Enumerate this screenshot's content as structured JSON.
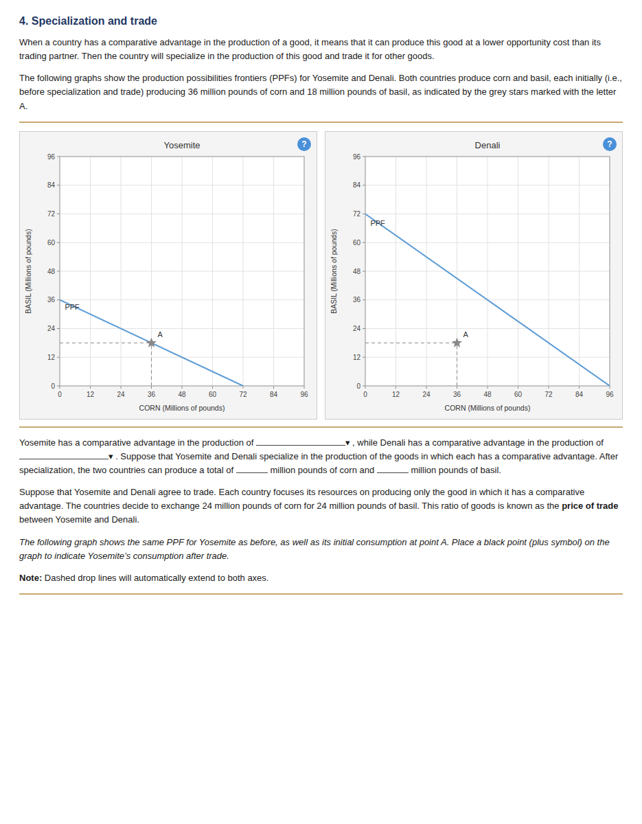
{
  "page": {
    "title": "4. Specialization and trade",
    "help": "?",
    "intro": [
      {
        "runs": [
          "When a country has a comparative advantage in the production of a good, it means that it can produce this good at a lower opportunity cost than its trading partner. Then the country will specialize in the production of this good and trade it for other goods."
        ]
      },
      {
        "runs": [
          "The following graphs show the production possibilities frontiers (PPFs) for Yosemite and Denali. Both countries produce corn and basil, each initially (i.e., before specialization and trade) producing 36 million pounds of corn and 18 million pounds of basil, as indicated by the grey stars marked with the letter A."
        ]
      }
    ],
    "questions": [
      {
        "runs": [
          "Yosemite has a comparative advantage in the production of ",
          {
            "type": "blank"
          },
          "▾ , while Denali has a comparative advantage in the production of ",
          {
            "type": "blank"
          },
          "▾ . Suppose that Yosemite and Denali specialize in the production of the goods in which each has a comparative advantage. After specialization, the two countries can produce a total of ",
          {
            "type": "blank"
          },
          " million pounds of corn and ",
          {
            "type": "blank"
          },
          " million pounds of basil."
        ]
      },
      {
        "runs": [
          "Suppose that Yosemite and Denali agree to trade. Each country focuses its resources on producing only the good in which it has a comparative advantage. The countries decide to exchange 24 million pounds of corn for 24 million pounds of basil. This ratio of goods is known as the ",
          {
            "text": "price of trade",
            "style": "bold"
          },
          " between Yosemite and Denali."
        ]
      },
      {
        "style": "italic",
        "runs": [
          "The following graph shows the same PPF for Yosemite as before, as well as its initial consumption at point A. Place a black point (plus symbol) on the graph to indicate Yosemite’s consumption after trade."
        ]
      },
      {
        "runs": [
          {
            "text": "Note:",
            "style": "bold"
          },
          " Dashed drop lines will automatically extend to both axes."
        ]
      }
    ]
  },
  "chart_data": [
    {
      "type": "line",
      "title": "Yosemite",
      "xlabel": "CORN (Millions of pounds)",
      "ylabel": "BASIL (Millions of pounds)",
      "xlim": [
        0,
        96
      ],
      "ylim": [
        0,
        96
      ],
      "xticks": [
        0,
        12,
        24,
        36,
        48,
        60,
        72,
        84,
        96
      ],
      "yticks": [
        0,
        12,
        24,
        36,
        48,
        60,
        72,
        84,
        96
      ],
      "grid": true,
      "series": [
        {
          "type": "line",
          "color": "#5b9bd5",
          "x": [
            0,
            72
          ],
          "values": [
            36,
            0
          ]
        },
        {
          "type": "scatter",
          "marker": "star",
          "color": "#888888",
          "x": [
            36
          ],
          "values": [
            18
          ]
        }
      ],
      "annotations": [
        {
          "text": "PPF",
          "x": 2,
          "y": 35
        },
        {
          "text": "A",
          "x": 36,
          "y": 18
        }
      ]
    },
    {
      "type": "line",
      "title": "Denali",
      "xlabel": "CORN (Millions of pounds)",
      "ylabel": "BASIL (Millions of pounds)",
      "xlim": [
        0,
        96
      ],
      "ylim": [
        0,
        96
      ],
      "xticks": [
        0,
        12,
        24,
        36,
        48,
        60,
        72,
        84,
        96
      ],
      "yticks": [
        0,
        12,
        24,
        36,
        48,
        60,
        72,
        84,
        96
      ],
      "grid": true,
      "series": [
        {
          "type": "line",
          "color": "#5b9bd5",
          "x": [
            0,
            96
          ],
          "values": [
            72,
            0
          ]
        },
        {
          "type": "scatter",
          "marker": "star",
          "color": "#888888",
          "x": [
            36
          ],
          "values": [
            18
          ]
        }
      ],
      "annotations": [
        {
          "text": "PPF",
          "x": 2,
          "y": 70
        },
        {
          "text": "A",
          "x": 36,
          "y": 18
        }
      ]
    }
  ]
}
